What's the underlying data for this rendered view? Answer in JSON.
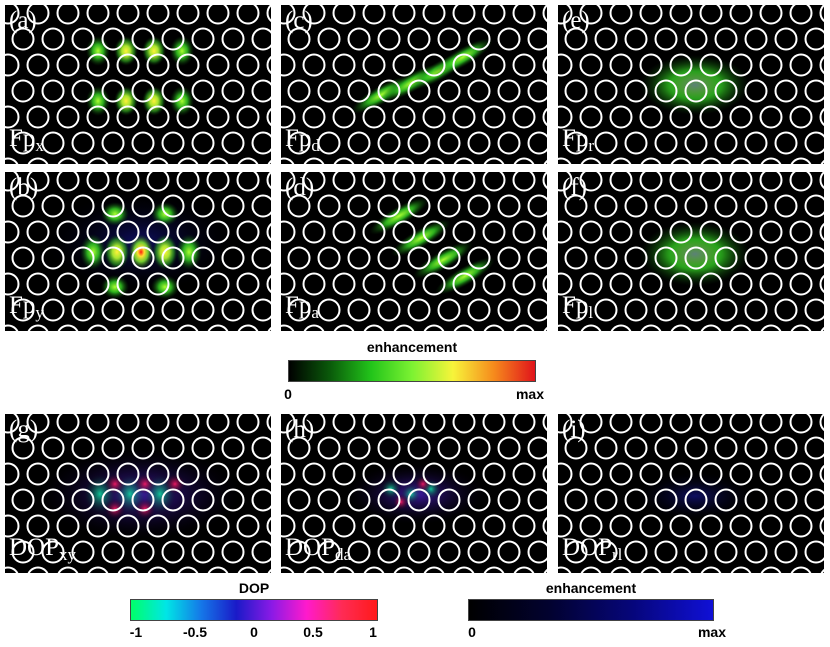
{
  "panels": [
    {
      "id": "a",
      "label": "(a)",
      "quantity": "Fp",
      "sub": "x"
    },
    {
      "id": "c",
      "label": "(c)",
      "quantity": "Fp",
      "sub": "d"
    },
    {
      "id": "e",
      "label": "(e)",
      "quantity": "Fp",
      "sub": "r"
    },
    {
      "id": "b",
      "label": "(b)",
      "quantity": "Fp",
      "sub": "y"
    },
    {
      "id": "d",
      "label": "(d)",
      "quantity": "Fp",
      "sub": "a"
    },
    {
      "id": "f",
      "label": "(f)",
      "quantity": "Fp",
      "sub": "l"
    },
    {
      "id": "g",
      "label": "(g)",
      "quantity": "DOP",
      "sub": "xy"
    },
    {
      "id": "h",
      "label": "(h)",
      "quantity": "DOP",
      "sub": "da"
    },
    {
      "id": "i",
      "label": "(i)",
      "quantity": "DOP",
      "sub": "rl"
    }
  ],
  "colorbars": {
    "enhancement_green": {
      "title": "enhancement",
      "min_label": "0",
      "max_label": "max",
      "colors": [
        "#000000",
        "#0a5a0a",
        "#22c41a",
        "#7cf232",
        "#f7f43a",
        "#f68a1c",
        "#e0131b"
      ]
    },
    "dop": {
      "title": "DOP",
      "ticks": [
        "-1",
        "-0.5",
        "0",
        "0.5",
        "1"
      ],
      "colors": [
        "#00ff6a",
        "#00e6e6",
        "#1577e8",
        "#1a1ac8",
        "#8a1ae6",
        "#ff1acc",
        "#ff2b55",
        "#ff1a1a"
      ]
    },
    "enhancement_blue": {
      "title": "enhancement",
      "min_label": "0",
      "max_label": "max",
      "colors": [
        "#000000",
        "#020230",
        "#06067a",
        "#1010d6"
      ]
    }
  }
}
